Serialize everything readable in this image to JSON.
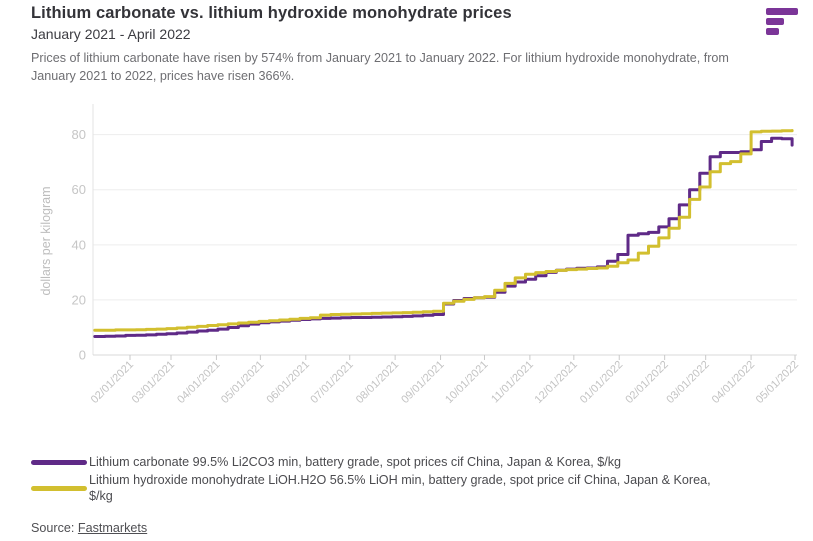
{
  "header": {
    "title": "Lithium carbonate vs. lithium hydroxide monohydrate prices",
    "subtitle": "January 2021 - April 2022",
    "description": "Prices of lithium carbonate have risen by 574% from January 2021 to January 2022. For lithium hydroxide monohydrate, from January 2021 to 2022, prices have risen 366%.",
    "logo_color": "#7b3598"
  },
  "chart_data": {
    "type": "line",
    "line_style": "step-after",
    "xlabel": "",
    "ylabel": "dollars per kilogram",
    "ylim": [
      0,
      88
    ],
    "yticks": [
      0,
      20,
      40,
      60,
      80
    ],
    "grid": "horizontal",
    "legend_position": "bottom",
    "xticks": [
      {
        "date": "2021-02-01",
        "label": "02/01/2021"
      },
      {
        "date": "2021-03-01",
        "label": "03/01/2021"
      },
      {
        "date": "2021-04-01",
        "label": "04/01/2021"
      },
      {
        "date": "2021-05-01",
        "label": "05/01/2021"
      },
      {
        "date": "2021-06-01",
        "label": "06/01/2021"
      },
      {
        "date": "2021-07-01",
        "label": "07/01/2021"
      },
      {
        "date": "2021-08-01",
        "label": "08/01/2021"
      },
      {
        "date": "2021-09-01",
        "label": "09/01/2021"
      },
      {
        "date": "2021-10-01",
        "label": "10/01/2021"
      },
      {
        "date": "2021-11-01",
        "label": "11/01/2021"
      },
      {
        "date": "2021-12-01",
        "label": "12/01/2021"
      },
      {
        "date": "2022-01-01",
        "label": "01/01/2022"
      },
      {
        "date": "2022-02-01",
        "label": "02/01/2022"
      },
      {
        "date": "2022-03-01",
        "label": "03/01/2022"
      },
      {
        "date": "2022-04-01",
        "label": "04/01/2022"
      },
      {
        "date": "2022-05-01",
        "label": "05/01/2022"
      }
    ],
    "series": [
      {
        "name": "Lithium carbonate 99.5% Li2CO3 min, battery grade, spot prices cif China, Japan & Korea, $/kg",
        "color": "#5f2a87",
        "points": [
          [
            "2021-01-08",
            6.7
          ],
          [
            "2021-01-15",
            6.8
          ],
          [
            "2021-01-22",
            6.9
          ],
          [
            "2021-01-29",
            7.1
          ],
          [
            "2021-02-05",
            7.2
          ],
          [
            "2021-02-12",
            7.3
          ],
          [
            "2021-02-19",
            7.5
          ],
          [
            "2021-02-26",
            7.7
          ],
          [
            "2021-03-05",
            8.0
          ],
          [
            "2021-03-12",
            8.3
          ],
          [
            "2021-03-19",
            8.7
          ],
          [
            "2021-03-26",
            9.0
          ],
          [
            "2021-04-02",
            9.4
          ],
          [
            "2021-04-09",
            10.0
          ],
          [
            "2021-04-16",
            10.6
          ],
          [
            "2021-04-23",
            11.2
          ],
          [
            "2021-04-30",
            11.7
          ],
          [
            "2021-05-07",
            12.0
          ],
          [
            "2021-05-14",
            12.3
          ],
          [
            "2021-05-21",
            12.6
          ],
          [
            "2021-05-28",
            12.9
          ],
          [
            "2021-06-04",
            13.1
          ],
          [
            "2021-06-11",
            13.3
          ],
          [
            "2021-06-18",
            13.4
          ],
          [
            "2021-06-25",
            13.5
          ],
          [
            "2021-07-02",
            13.6
          ],
          [
            "2021-07-09",
            13.6
          ],
          [
            "2021-07-16",
            13.7
          ],
          [
            "2021-07-23",
            13.8
          ],
          [
            "2021-07-30",
            13.9
          ],
          [
            "2021-08-06",
            14.0
          ],
          [
            "2021-08-13",
            14.2
          ],
          [
            "2021-08-20",
            14.4
          ],
          [
            "2021-08-27",
            14.7
          ],
          [
            "2021-09-03",
            18.5
          ],
          [
            "2021-09-10",
            19.8
          ],
          [
            "2021-09-17",
            20.5
          ],
          [
            "2021-09-24",
            20.8
          ],
          [
            "2021-10-01",
            21.0
          ],
          [
            "2021-10-08",
            22.8
          ],
          [
            "2021-10-15",
            25.0
          ],
          [
            "2021-10-22",
            26.5
          ],
          [
            "2021-10-29",
            27.5
          ],
          [
            "2021-11-05",
            28.8
          ],
          [
            "2021-11-12",
            30.0
          ],
          [
            "2021-11-19",
            30.8
          ],
          [
            "2021-11-26",
            31.2
          ],
          [
            "2021-12-03",
            31.5
          ],
          [
            "2021-12-10",
            31.6
          ],
          [
            "2021-12-17",
            32.0
          ],
          [
            "2021-12-24",
            34.0
          ],
          [
            "2021-12-31",
            36.5
          ],
          [
            "2022-01-07",
            43.5
          ],
          [
            "2022-01-14",
            44.0
          ],
          [
            "2022-01-21",
            44.5
          ],
          [
            "2022-01-28",
            46.5
          ],
          [
            "2022-02-04",
            49.5
          ],
          [
            "2022-02-11",
            54.5
          ],
          [
            "2022-02-18",
            60.0
          ],
          [
            "2022-02-25",
            66.0
          ],
          [
            "2022-03-04",
            72.0
          ],
          [
            "2022-03-11",
            73.5
          ],
          [
            "2022-03-18",
            73.5
          ],
          [
            "2022-03-25",
            73.8
          ],
          [
            "2022-04-01",
            74.5
          ],
          [
            "2022-04-08",
            77.5
          ],
          [
            "2022-04-15",
            78.7
          ],
          [
            "2022-04-22",
            78.5
          ],
          [
            "2022-04-29",
            76.2
          ]
        ]
      },
      {
        "name": "Lithium hydroxide monohydrate LiOH.H2O 56.5% LiOH min, battery grade, spot price cif China, Japan & Korea, $/kg",
        "color": "#d2bf2f",
        "points": [
          [
            "2021-01-08",
            9.0
          ],
          [
            "2021-01-15",
            9.0
          ],
          [
            "2021-01-22",
            9.1
          ],
          [
            "2021-01-29",
            9.1
          ],
          [
            "2021-02-05",
            9.2
          ],
          [
            "2021-02-12",
            9.3
          ],
          [
            "2021-02-19",
            9.4
          ],
          [
            "2021-02-26",
            9.6
          ],
          [
            "2021-03-05",
            9.8
          ],
          [
            "2021-03-12",
            10.1
          ],
          [
            "2021-03-19",
            10.4
          ],
          [
            "2021-03-26",
            10.7
          ],
          [
            "2021-04-02",
            11.0
          ],
          [
            "2021-04-09",
            11.3
          ],
          [
            "2021-04-16",
            11.6
          ],
          [
            "2021-04-23",
            11.9
          ],
          [
            "2021-04-30",
            12.2
          ],
          [
            "2021-05-07",
            12.4
          ],
          [
            "2021-05-14",
            12.7
          ],
          [
            "2021-05-21",
            13.0
          ],
          [
            "2021-05-28",
            13.3
          ],
          [
            "2021-06-04",
            13.5
          ],
          [
            "2021-06-11",
            14.5
          ],
          [
            "2021-06-18",
            14.7
          ],
          [
            "2021-06-25",
            14.8
          ],
          [
            "2021-07-02",
            14.9
          ],
          [
            "2021-07-09",
            15.0
          ],
          [
            "2021-07-16",
            15.1
          ],
          [
            "2021-07-23",
            15.2
          ],
          [
            "2021-07-30",
            15.3
          ],
          [
            "2021-08-06",
            15.4
          ],
          [
            "2021-08-13",
            15.5
          ],
          [
            "2021-08-20",
            15.7
          ],
          [
            "2021-08-27",
            15.9
          ],
          [
            "2021-09-03",
            18.8
          ],
          [
            "2021-09-10",
            19.5
          ],
          [
            "2021-09-17",
            20.2
          ],
          [
            "2021-09-24",
            20.8
          ],
          [
            "2021-10-01",
            21.2
          ],
          [
            "2021-10-08",
            23.5
          ],
          [
            "2021-10-15",
            26.0
          ],
          [
            "2021-10-22",
            28.0
          ],
          [
            "2021-10-29",
            29.3
          ],
          [
            "2021-11-05",
            29.9
          ],
          [
            "2021-11-12",
            30.3
          ],
          [
            "2021-11-19",
            30.7
          ],
          [
            "2021-11-26",
            31.0
          ],
          [
            "2021-12-03",
            31.2
          ],
          [
            "2021-12-10",
            31.4
          ],
          [
            "2021-12-17",
            31.6
          ],
          [
            "2021-12-24",
            32.2
          ],
          [
            "2021-12-31",
            33.5
          ],
          [
            "2022-01-07",
            34.5
          ],
          [
            "2022-01-14",
            37.0
          ],
          [
            "2022-01-21",
            39.5
          ],
          [
            "2022-01-28",
            42.5
          ],
          [
            "2022-02-04",
            46.0
          ],
          [
            "2022-02-11",
            50.0
          ],
          [
            "2022-02-18",
            56.5
          ],
          [
            "2022-02-25",
            61.0
          ],
          [
            "2022-03-04",
            66.5
          ],
          [
            "2022-03-11",
            69.5
          ],
          [
            "2022-03-18",
            70.2
          ],
          [
            "2022-03-25",
            73.0
          ],
          [
            "2022-04-01",
            81.0
          ],
          [
            "2022-04-08",
            81.2
          ],
          [
            "2022-04-15",
            81.3
          ],
          [
            "2022-04-22",
            81.4
          ],
          [
            "2022-04-29",
            81.5
          ]
        ]
      }
    ],
    "style": {
      "grid_color": "#ededed",
      "axis_color": "#d8d8d8",
      "tick_color": "#c9c9c9",
      "axis_text_color": "#c3c3c3",
      "ylabel_color": "#bdbdbd"
    }
  },
  "source": {
    "prefix": "Source: ",
    "link_label": "Fastmarkets"
  }
}
